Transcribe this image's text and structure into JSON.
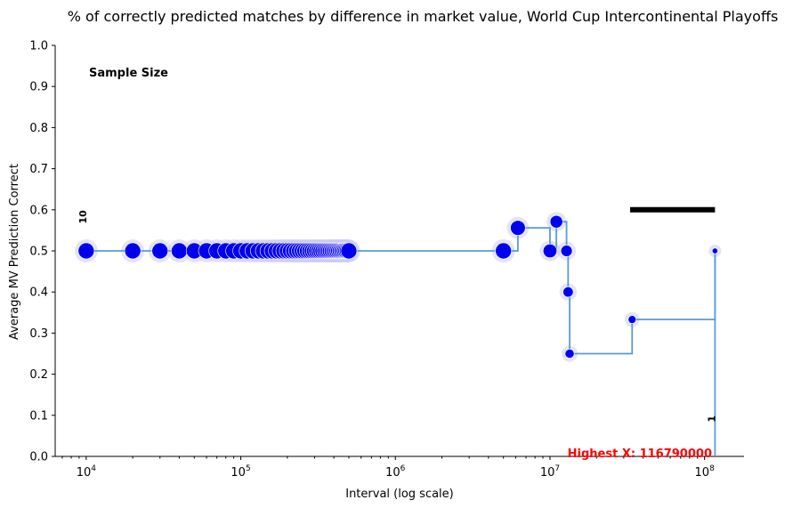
{
  "chart_data": {
    "type": "line",
    "title": "% of correctly predicted matches by difference in market value, World Cup Intercontinental Playoffs",
    "xlabel": "Interval (log scale)",
    "ylabel": "Average MV Prediction Correct",
    "x_scale": "log",
    "xlim": [
      6300,
      180000000
    ],
    "ylim": [
      0,
      1
    ],
    "x_ticks": [
      {
        "value": 10000,
        "base": "10",
        "exp": "4"
      },
      {
        "value": 100000,
        "base": "10",
        "exp": "5"
      },
      {
        "value": 1000000,
        "base": "10",
        "exp": "6"
      },
      {
        "value": 10000000,
        "base": "10",
        "exp": "7"
      },
      {
        "value": 100000000,
        "base": "10",
        "exp": "8"
      }
    ],
    "y_ticks": [
      "0.0",
      "0.1",
      "0.2",
      "0.3",
      "0.4",
      "0.5",
      "0.6",
      "0.7",
      "0.8",
      "0.9",
      "1.0"
    ],
    "grid": false,
    "series": [
      {
        "style": "step",
        "color": "#5b9bd5",
        "x": [
          10000,
          20000,
          30000,
          40000,
          50000,
          60000,
          70000,
          80000,
          90000,
          100000,
          110000,
          120000,
          130000,
          140000,
          150000,
          160000,
          170000,
          180000,
          190000,
          200000,
          210000,
          220000,
          230000,
          240000,
          250000,
          260000,
          270000,
          280000,
          290000,
          300000,
          310000,
          320000,
          330000,
          340000,
          350000,
          360000,
          370000,
          380000,
          390000,
          400000,
          410000,
          420000,
          430000,
          440000,
          450000,
          460000,
          470000,
          480000,
          490000,
          500000,
          5000000,
          6200000,
          10000000,
          11000000,
          12800000,
          13100000,
          13400000,
          34000000,
          116790000
        ],
        "y": [
          0.5,
          0.5,
          0.5,
          0.5,
          0.5,
          0.5,
          0.5,
          0.5,
          0.5,
          0.5,
          0.5,
          0.5,
          0.5,
          0.5,
          0.5,
          0.5,
          0.5,
          0.5,
          0.5,
          0.5,
          0.5,
          0.5,
          0.5,
          0.5,
          0.5,
          0.5,
          0.5,
          0.5,
          0.5,
          0.5,
          0.5,
          0.5,
          0.5,
          0.5,
          0.5,
          0.5,
          0.5,
          0.5,
          0.5,
          0.5,
          0.5,
          0.5,
          0.5,
          0.5,
          0.5,
          0.5,
          0.5,
          0.5,
          0.5,
          0.5,
          0.5,
          0.556,
          0.5,
          0.571,
          0.5,
          0.4,
          0.25,
          0.333,
          0.5
        ],
        "sample_size": [
          10,
          10,
          10,
          10,
          10,
          10,
          10,
          10,
          10,
          10,
          10,
          10,
          10,
          10,
          10,
          10,
          10,
          10,
          10,
          10,
          10,
          10,
          10,
          10,
          10,
          10,
          10,
          10,
          10,
          10,
          10,
          10,
          10,
          10,
          10,
          10,
          10,
          10,
          10,
          10,
          10,
          10,
          10,
          10,
          10,
          10,
          10,
          10,
          10,
          10,
          10,
          9,
          8,
          7,
          6,
          5,
          4,
          3,
          1
        ]
      }
    ],
    "sample_size_bars": [
      {
        "x": 10000,
        "label": "10"
      },
      {
        "x": 116790000,
        "label": "1"
      }
    ],
    "sample_size_line": {
      "x_start": 33000000,
      "x_end": 116790000,
      "y": 0.6
    },
    "end_drop": {
      "x": 116790000,
      "y_from": 0.5,
      "y_to": 0.0
    },
    "annotations": {
      "sample_size_title": "Sample Size",
      "highest_x": "Highest X: 116790000"
    },
    "colors": {
      "marker": "#0000ee",
      "halo": "#c9c9f2",
      "line": "#5b9bd5",
      "highlight": "#ff0000",
      "axis": "#000000"
    }
  }
}
